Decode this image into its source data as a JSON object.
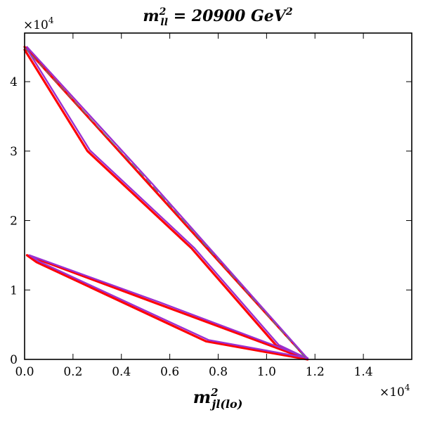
{
  "chart_data": {
    "type": "line",
    "title": {
      "base": "m",
      "sup": "2",
      "sub": "ll",
      "rest": " = 20900 GeV",
      "rest_sup": "2"
    },
    "xlabel": {
      "base": "m",
      "sup": "2",
      "sub": "jl(lo)"
    },
    "ylabel": "",
    "x_multiplier": {
      "base": "×10",
      "exp": "4"
    },
    "y_multiplier": {
      "base": "×10",
      "exp": "4"
    },
    "xlim": [
      0,
      16000
    ],
    "ylim": [
      0,
      47000
    ],
    "xticks": [
      0,
      2000,
      4000,
      6000,
      8000,
      10000,
      12000,
      14000
    ],
    "xtick_labels": [
      "0.0",
      "0.2",
      "0.4",
      "0.6",
      "0.8",
      "1.0",
      "1.2",
      "1.4"
    ],
    "yticks": [
      0,
      10000,
      20000,
      30000,
      40000
    ],
    "ytick_labels": [
      "0",
      "1",
      "2",
      "3",
      "4"
    ],
    "grid": false,
    "series": [
      {
        "color": "#ff0000",
        "style": "solid",
        "width": 3.2,
        "points": [
          [
            0,
            45000
          ],
          [
            5200,
            25000
          ],
          [
            11700,
            0
          ],
          [
            10400,
            2000
          ],
          [
            6900,
            16000
          ],
          [
            2600,
            30000
          ],
          [
            0,
            44600
          ]
        ]
      },
      {
        "color": "#ff0000",
        "style": "solid",
        "width": 3.2,
        "points": [
          [
            100,
            15000
          ],
          [
            5500,
            8000
          ],
          [
            11700,
            0
          ],
          [
            7500,
            2600
          ],
          [
            500,
            14000
          ],
          [
            100,
            15000
          ]
        ]
      },
      {
        "color": "#9b30d0",
        "style": "solid",
        "width": 2.4,
        "points": [
          [
            100,
            45000
          ],
          [
            5300,
            25200
          ],
          [
            11700,
            100
          ],
          [
            10500,
            2100
          ],
          [
            7000,
            16100
          ],
          [
            2700,
            30100
          ],
          [
            100,
            44700
          ]
        ]
      },
      {
        "color": "#9b30d0",
        "style": "solid",
        "width": 2.4,
        "points": [
          [
            200,
            15000
          ],
          [
            5600,
            8200
          ],
          [
            11700,
            200
          ],
          [
            7600,
            2800
          ],
          [
            600,
            14100
          ],
          [
            200,
            15000
          ]
        ]
      },
      {
        "color": "#707070",
        "style": "dashed",
        "width": 1.4,
        "points": [
          [
            0,
            44900
          ],
          [
            5250,
            25100
          ],
          [
            11650,
            50
          ]
        ]
      }
    ]
  }
}
